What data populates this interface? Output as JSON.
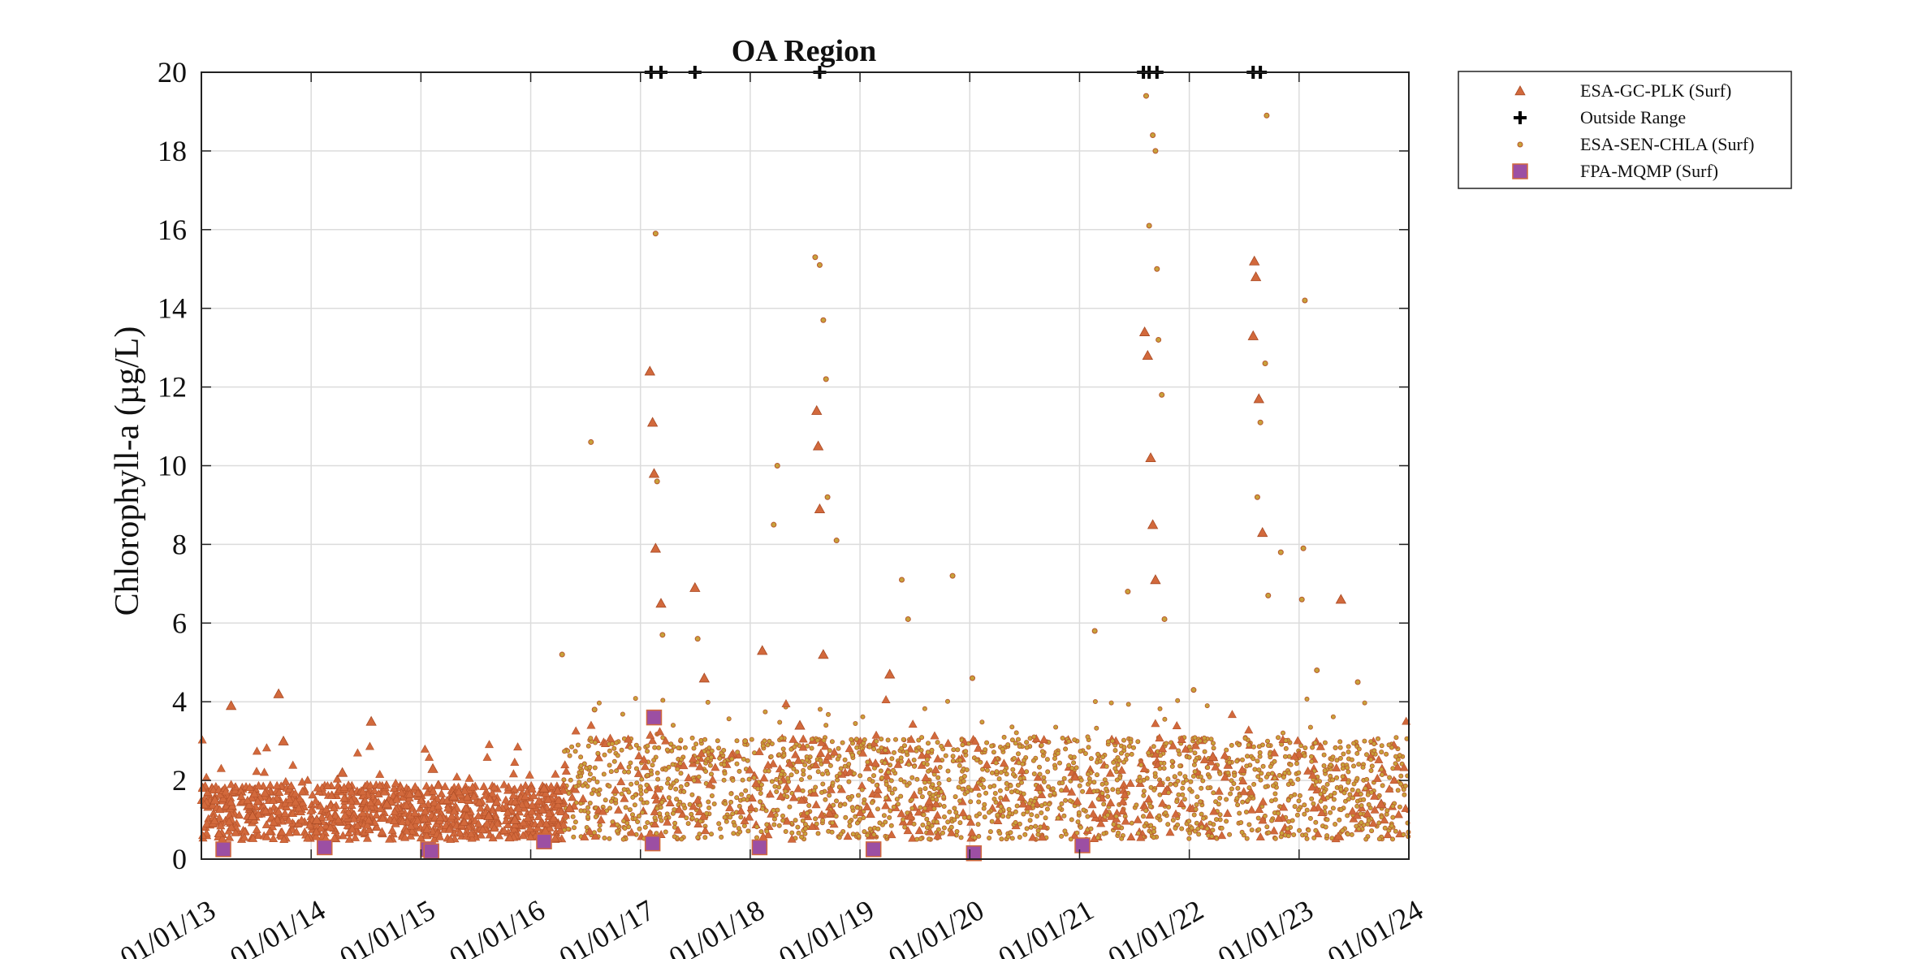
{
  "chart_data": {
    "type": "scatter",
    "title": "OA Region",
    "xlabel": "",
    "ylabel": "Chlorophyll-a (µg/L)",
    "ylim": [
      0,
      20
    ],
    "xlim": [
      "2013-01-01",
      "2024-01-01"
    ],
    "grid": true,
    "legend_position": "outside-top-right",
    "x_ticks": [
      "01/01/13",
      "01/01/14",
      "01/01/15",
      "01/01/16",
      "01/01/17",
      "01/01/18",
      "01/01/19",
      "01/01/20",
      "01/01/21",
      "01/01/22",
      "01/01/23",
      "01/01/24"
    ],
    "y_ticks": [
      "0",
      "2",
      "4",
      "6",
      "8",
      "10",
      "12",
      "14",
      "16",
      "18",
      "20"
    ],
    "colors": {
      "esa_gc_plk": "#d2693c",
      "esa_sen_chla_fill": "#c8a23a",
      "esa_sen_chla_edge": "#b8572e",
      "outside_range": "#000000",
      "fpa_mqmp_fill": "#9c4fa3",
      "fpa_mqmp_edge": "#d2693c"
    },
    "series": [
      {
        "name": "ESA-GC-PLK (Surf)",
        "marker": "triangle",
        "values": [
          [
            "2013-02-15",
            1.5
          ],
          [
            "2013-04-10",
            3.9
          ],
          [
            "2013-06-20",
            1.1
          ],
          [
            "2013-09-15",
            4.2
          ],
          [
            "2013-10-01",
            3.0
          ],
          [
            "2014-01-20",
            1.0
          ],
          [
            "2014-04-15",
            2.2
          ],
          [
            "2014-07-20",
            3.5
          ],
          [
            "2014-09-10",
            1.4
          ],
          [
            "2015-02-10",
            2.3
          ],
          [
            "2015-04-20",
            1.6
          ],
          [
            "2015-08-15",
            1.1
          ],
          [
            "2015-11-10",
            1.0
          ],
          [
            "2016-02-15",
            1.8
          ],
          [
            "2016-05-10",
            1.3
          ],
          [
            "2017-02-01",
            12.4
          ],
          [
            "2017-02-10",
            11.1
          ],
          [
            "2017-02-15",
            9.8
          ],
          [
            "2017-02-20",
            7.9
          ],
          [
            "2017-03-10",
            6.5
          ],
          [
            "2017-07-01",
            6.9
          ],
          [
            "2017-08-01",
            4.6
          ],
          [
            "2018-02-10",
            5.3
          ],
          [
            "2018-06-15",
            3.4
          ],
          [
            "2018-08-10",
            11.4
          ],
          [
            "2018-08-15",
            10.5
          ],
          [
            "2018-08-20",
            8.9
          ],
          [
            "2018-09-01",
            5.2
          ],
          [
            "2019-04-10",
            4.7
          ],
          [
            "2021-08-05",
            13.4
          ],
          [
            "2021-08-15",
            12.8
          ],
          [
            "2021-08-25",
            10.2
          ],
          [
            "2021-09-01",
            8.5
          ],
          [
            "2021-09-10",
            7.1
          ],
          [
            "2022-03-20",
            2.6
          ],
          [
            "2022-08-05",
            15.2
          ],
          [
            "2022-08-10",
            14.8
          ],
          [
            "2022-08-01",
            13.3
          ],
          [
            "2022-08-20",
            11.7
          ],
          [
            "2022-09-01",
            8.3
          ],
          [
            "2023-05-20",
            6.6
          ],
          [
            "2023-10-01",
            1.4
          ]
        ]
      },
      {
        "name": "Outside Range",
        "marker": "plus",
        "values": [
          [
            "2017-02-05",
            20
          ],
          [
            "2017-03-10",
            20
          ],
          [
            "2017-07-01",
            20
          ],
          [
            "2018-08-20",
            20
          ],
          [
            "2021-08-01",
            20
          ],
          [
            "2021-08-20",
            20
          ],
          [
            "2021-09-15",
            20
          ],
          [
            "2022-08-01",
            20
          ],
          [
            "2022-08-25",
            20
          ]
        ]
      },
      {
        "name": "ESA-SEN-CHLA (Surf)",
        "marker": "dot",
        "values": [
          [
            "2016-07-20",
            10.6
          ],
          [
            "2016-04-15",
            5.2
          ],
          [
            "2016-08-01",
            3.8
          ],
          [
            "2017-02-20",
            15.9
          ],
          [
            "2017-02-25",
            9.6
          ],
          [
            "2017-03-15",
            5.7
          ],
          [
            "2017-07-10",
            5.6
          ],
          [
            "2017-12-15",
            3.0
          ],
          [
            "2018-03-20",
            8.5
          ],
          [
            "2018-04-01",
            10.0
          ],
          [
            "2018-08-05",
            15.3
          ],
          [
            "2018-08-20",
            15.1
          ],
          [
            "2018-09-01",
            13.7
          ],
          [
            "2018-09-10",
            12.2
          ],
          [
            "2018-09-15",
            9.2
          ],
          [
            "2018-10-15",
            8.1
          ],
          [
            "2019-05-20",
            7.1
          ],
          [
            "2019-06-10",
            6.1
          ],
          [
            "2019-11-05",
            7.2
          ],
          [
            "2020-01-10",
            4.6
          ],
          [
            "2021-02-20",
            5.8
          ],
          [
            "2021-06-10",
            6.8
          ],
          [
            "2021-08-10",
            19.4
          ],
          [
            "2021-08-20",
            16.1
          ],
          [
            "2021-09-01",
            18.4
          ],
          [
            "2021-09-10",
            18.0
          ],
          [
            "2021-09-15",
            15.0
          ],
          [
            "2021-09-20",
            13.2
          ],
          [
            "2021-10-01",
            11.8
          ],
          [
            "2021-10-10",
            6.1
          ],
          [
            "2022-01-15",
            4.3
          ],
          [
            "2022-09-15",
            18.9
          ],
          [
            "2022-09-10",
            12.6
          ],
          [
            "2022-08-25",
            11.1
          ],
          [
            "2022-08-15",
            9.2
          ],
          [
            "2022-09-20",
            6.7
          ],
          [
            "2022-11-01",
            7.8
          ],
          [
            "2023-01-20",
            14.2
          ],
          [
            "2023-01-15",
            7.9
          ],
          [
            "2023-01-10",
            6.6
          ],
          [
            "2023-03-01",
            4.8
          ],
          [
            "2023-07-15",
            4.5
          ]
        ]
      },
      {
        "name": "FPA-MQMP (Surf)",
        "marker": "square",
        "values": [
          [
            "2013-03-15",
            0.25
          ],
          [
            "2014-02-15",
            0.3
          ],
          [
            "2015-01-25",
            0.25
          ],
          [
            "2015-02-05",
            0.2
          ],
          [
            "2016-02-15",
            0.45
          ],
          [
            "2017-02-15",
            3.6
          ],
          [
            "2017-02-10",
            0.4
          ],
          [
            "2018-02-01",
            0.3
          ],
          [
            "2019-02-15",
            0.25
          ],
          [
            "2020-01-15",
            0.15
          ],
          [
            "2021-01-10",
            0.35
          ]
        ]
      }
    ]
  }
}
